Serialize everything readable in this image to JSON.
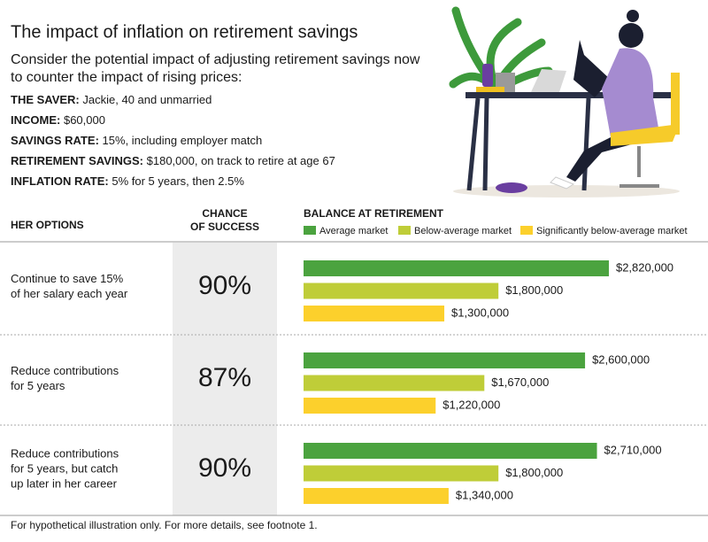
{
  "chart_data": {
    "type": "bar",
    "title": "The impact of inflation on retirement savings",
    "subtitle": [
      "Consider the potential impact of adjusting retirement savings now",
      "to counter the impact of rising prices:"
    ],
    "details": [
      {
        "label": "THE SAVER:",
        "text": "Jackie, 40 and unmarried"
      },
      {
        "label": "INCOME:",
        "text": "$60,000"
      },
      {
        "label": "SAVINGS RATE:",
        "text": "15%, including employer match"
      },
      {
        "label": "RETIREMENT SAVINGS:",
        "text": "$180,000, on track to retire at age 67"
      },
      {
        "label": "INFLATION RATE:",
        "text": "5% for 5 years, then 2.5%"
      }
    ],
    "column_headers": {
      "options": "HER OPTIONS",
      "success": [
        "CHANCE",
        "OF SUCCESS"
      ],
      "balance": "BALANCE AT RETIREMENT"
    },
    "categories": [
      [
        "Continue to save 15%",
        "of her salary each year"
      ],
      [
        "Reduce contributions",
        "for 5 years"
      ],
      [
        "Reduce contributions",
        "for 5 years, but catch",
        "up later in her career"
      ]
    ],
    "chance_of_success": [
      "90%",
      "87%",
      "90%"
    ],
    "series": [
      {
        "name": "Average market",
        "color": "#4ba33f",
        "values": [
          2820000,
          2600000,
          2710000
        ],
        "value_labels": [
          "$2,820,000",
          "$2,600,000",
          "$2,710,000"
        ]
      },
      {
        "name": "Below-average market",
        "color": "#bfcd38",
        "values": [
          1800000,
          1670000,
          1800000
        ],
        "value_labels": [
          "$1,800,000",
          "$1,670,000",
          "$1,800,000"
        ]
      },
      {
        "name": "Significantly below-average market",
        "color": "#fcd02c",
        "values": [
          1300000,
          1220000,
          1340000
        ],
        "value_labels": [
          "$1,300,000",
          "$1,220,000",
          "$1,340,000"
        ]
      }
    ],
    "xlim": [
      0,
      3000000
    ],
    "footnote": "For hypothetical illustration only. For more details, see footnote 1."
  }
}
